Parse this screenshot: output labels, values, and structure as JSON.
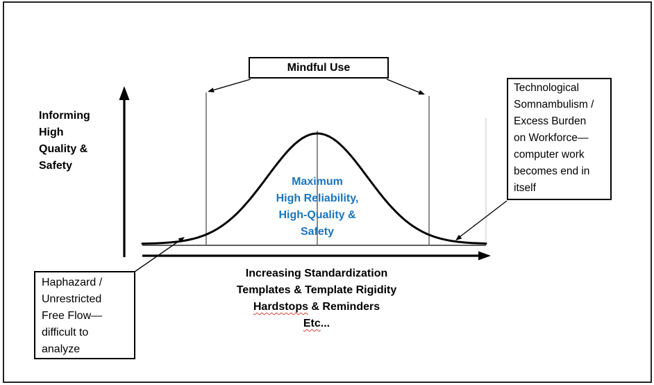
{
  "colors": {
    "accent_blue": "#1B74BE",
    "ink": "#000000",
    "thin_line": "#404040",
    "faint_line": "#D9D9D9",
    "squiggle_red": "#D04437"
  },
  "y_axis": {
    "label": "Informing\nHigh\nQuality &\nSafety"
  },
  "x_axis": {
    "line1": "Increasing Standardization",
    "line2": "Templates & Template Rigidity",
    "line3_word": "Hardstops",
    "line3_rest": " & Reminders",
    "line4_word": "Etc",
    "line4_rest": "..."
  },
  "top_box": {
    "label": "Mindful Use"
  },
  "curve": {
    "center_label": "Maximum\nHigh Reliability,\nHigh-Quality &\nSafety"
  },
  "right_box": {
    "text": "Technological\nSomnambulism /\nExcess Burden\non Workforce—\ncomputer work\nbecomes end in\nitself"
  },
  "left_box": {
    "text": "Haphazard /\nUnrestricted\nFree Flow—\ndifficult to\nanalyze"
  }
}
